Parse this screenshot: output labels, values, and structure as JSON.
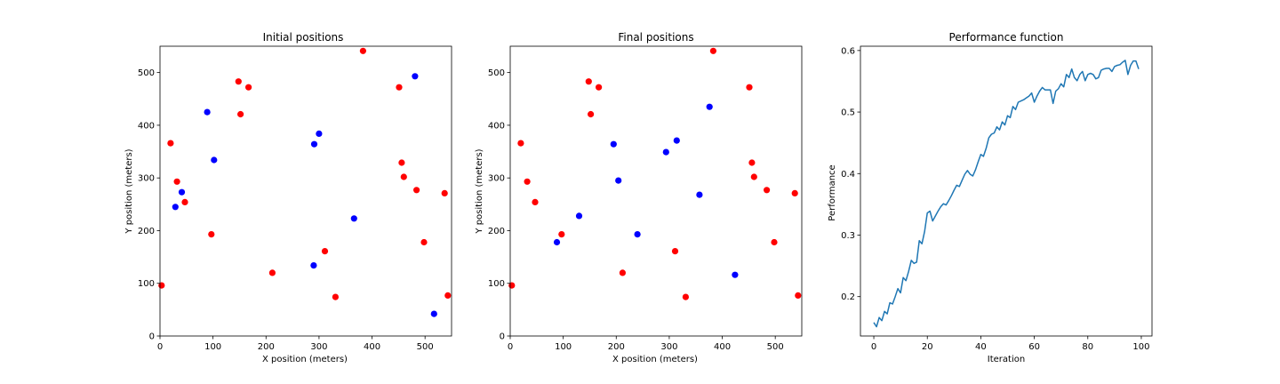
{
  "chart_data": [
    {
      "type": "scatter",
      "title": "Initial positions",
      "xlabel": "X position (meters)",
      "ylabel": "Y position (meters)",
      "xlim": [
        0,
        550
      ],
      "ylim": [
        0,
        550
      ],
      "xticks": [
        0,
        100,
        200,
        300,
        400,
        500
      ],
      "yticks": [
        0,
        100,
        200,
        300,
        400,
        500
      ],
      "grid": false,
      "series": [
        {
          "color": "#ff0000",
          "points": [
            [
              383,
              541
            ],
            [
              148,
              483
            ],
            [
              167,
              472
            ],
            [
              451,
              472
            ],
            [
              152,
              421
            ],
            [
              20,
              366
            ],
            [
              456,
              329
            ],
            [
              32,
              293
            ],
            [
              460,
              302
            ],
            [
              484,
              277
            ],
            [
              537,
              271
            ],
            [
              47,
              254
            ],
            [
              97,
              193
            ],
            [
              498,
              178
            ],
            [
              311,
              161
            ],
            [
              212,
              120
            ],
            [
              3,
              96
            ],
            [
              331,
              74
            ],
            [
              543,
              77
            ]
          ]
        },
        {
          "color": "#0000ff",
          "points": [
            [
              481,
              493
            ],
            [
              89,
              425
            ],
            [
              300,
              384
            ],
            [
              291,
              364
            ],
            [
              102,
              334
            ],
            [
              41,
              273
            ],
            [
              29,
              245
            ],
            [
              366,
              223
            ],
            [
              290,
              134
            ],
            [
              517,
              42
            ]
          ]
        }
      ]
    },
    {
      "type": "scatter",
      "title": "Final positions",
      "xlabel": "X position (meters)",
      "ylabel": "Y position (meters)",
      "xlim": [
        0,
        550
      ],
      "ylim": [
        0,
        550
      ],
      "xticks": [
        0,
        100,
        200,
        300,
        400,
        500
      ],
      "yticks": [
        0,
        100,
        200,
        300,
        400,
        500
      ],
      "grid": false,
      "series": [
        {
          "color": "#ff0000",
          "points": [
            [
              383,
              541
            ],
            [
              148,
              483
            ],
            [
              167,
              472
            ],
            [
              451,
              472
            ],
            [
              152,
              421
            ],
            [
              20,
              366
            ],
            [
              456,
              329
            ],
            [
              32,
              293
            ],
            [
              460,
              302
            ],
            [
              484,
              277
            ],
            [
              537,
              271
            ],
            [
              47,
              254
            ],
            [
              97,
              193
            ],
            [
              498,
              178
            ],
            [
              311,
              161
            ],
            [
              212,
              120
            ],
            [
              3,
              96
            ],
            [
              331,
              74
            ],
            [
              543,
              77
            ]
          ]
        },
        {
          "color": "#0000ff",
          "points": [
            [
              376,
              435
            ],
            [
              314,
              371
            ],
            [
              195,
              364
            ],
            [
              294,
              349
            ],
            [
              204,
              295
            ],
            [
              357,
              268
            ],
            [
              130,
              228
            ],
            [
              240,
              193
            ],
            [
              88,
              178
            ],
            [
              424,
              116
            ]
          ]
        }
      ]
    },
    {
      "type": "line",
      "title": "Performance function",
      "xlabel": "Iteration",
      "ylabel": "Performance",
      "xlim": [
        -5,
        104
      ],
      "ylim": [
        0.136,
        0.607
      ],
      "xticks": [
        0,
        20,
        40,
        60,
        80,
        100
      ],
      "yticks": [
        0.2,
        0.3,
        0.4,
        0.5,
        0.6
      ],
      "grid": false,
      "series": [
        {
          "color": "#1f77b4",
          "x": [
            0,
            1,
            2,
            3,
            4,
            5,
            6,
            7,
            8,
            9,
            10,
            11,
            12,
            13,
            14,
            15,
            16,
            17,
            18,
            19,
            20,
            21,
            22,
            23,
            24,
            25,
            26,
            27,
            28,
            29,
            30,
            31,
            32,
            33,
            34,
            35,
            36,
            37,
            38,
            39,
            40,
            41,
            42,
            43,
            44,
            45,
            46,
            47,
            48,
            49,
            50,
            51,
            52,
            53,
            54,
            55,
            56,
            57,
            58,
            59,
            60,
            61,
            62,
            63,
            64,
            65,
            66,
            67,
            68,
            69,
            70,
            71,
            72,
            73,
            74,
            75,
            76,
            77,
            78,
            79,
            80,
            81,
            82,
            83,
            84,
            85,
            86,
            87,
            88,
            89,
            90,
            91,
            92,
            93,
            94,
            95,
            96,
            97,
            98,
            99
          ],
          "y": [
            0.158,
            0.151,
            0.166,
            0.161,
            0.176,
            0.172,
            0.19,
            0.188,
            0.2,
            0.213,
            0.206,
            0.231,
            0.226,
            0.241,
            0.259,
            0.254,
            0.256,
            0.291,
            0.286,
            0.306,
            0.336,
            0.339,
            0.323,
            0.331,
            0.339,
            0.346,
            0.351,
            0.349,
            0.356,
            0.364,
            0.373,
            0.381,
            0.379,
            0.389,
            0.399,
            0.405,
            0.399,
            0.396,
            0.406,
            0.419,
            0.431,
            0.428,
            0.441,
            0.458,
            0.464,
            0.466,
            0.476,
            0.471,
            0.484,
            0.479,
            0.494,
            0.491,
            0.509,
            0.504,
            0.516,
            0.518,
            0.52,
            0.523,
            0.526,
            0.531,
            0.516,
            0.526,
            0.534,
            0.54,
            0.536,
            0.536,
            0.536,
            0.514,
            0.534,
            0.538,
            0.546,
            0.541,
            0.561,
            0.556,
            0.57,
            0.556,
            0.551,
            0.561,
            0.566,
            0.551,
            0.561,
            0.563,
            0.561,
            0.554,
            0.556,
            0.568,
            0.57,
            0.571,
            0.571,
            0.566,
            0.574,
            0.576,
            0.577,
            0.581,
            0.584,
            0.561,
            0.576,
            0.583,
            0.583,
            0.57
          ]
        }
      ]
    }
  ]
}
